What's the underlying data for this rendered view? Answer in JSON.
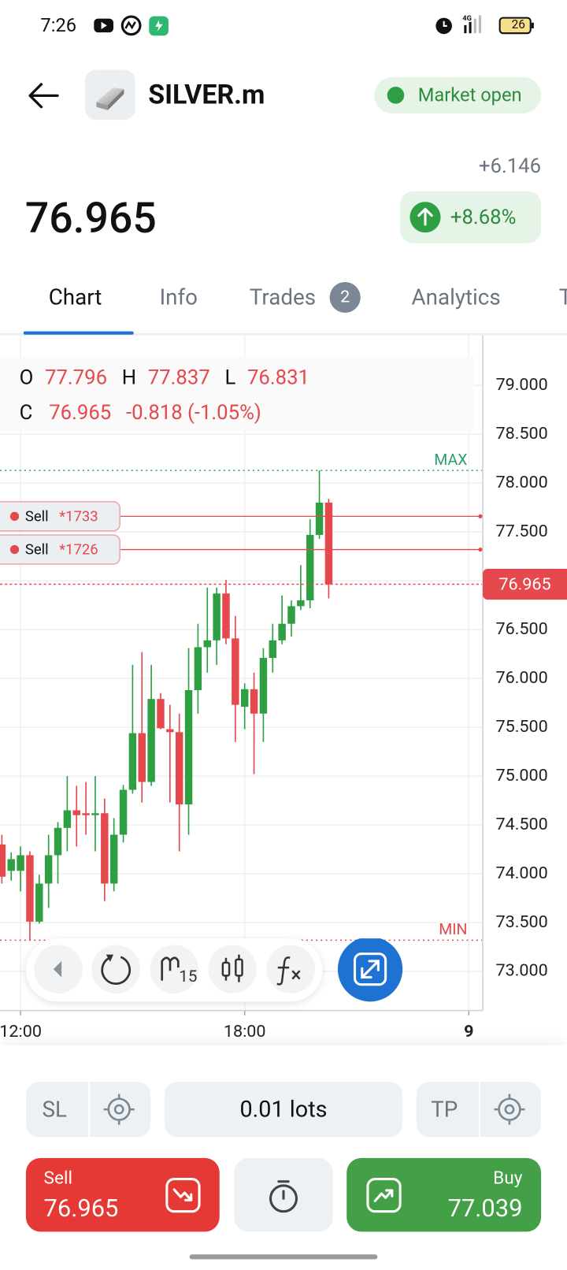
{
  "status_bar": {
    "time": "7:26",
    "battery": "26"
  },
  "header": {
    "symbol": "SILVER.m",
    "market_status": "Market open"
  },
  "quote": {
    "change": "+6.146",
    "price": "76.965",
    "change_percent": "+8.68%"
  },
  "tabs": {
    "items": [
      "Chart",
      "Info",
      "Trades",
      "Analytics",
      "T"
    ],
    "trades_badge": "2"
  },
  "ohlc": {
    "o_label": "O",
    "o": "77.796",
    "h_label": "H",
    "h": "77.837",
    "l_label": "L",
    "l": "76.831",
    "c_label": "C",
    "c": "76.965",
    "change": "-0.818 (-1.05%)"
  },
  "chart_data": {
    "type": "candlestick",
    "ylim": [
      72.6,
      79.52
    ],
    "yticks": [
      {
        "value": 73,
        "label": "73.000"
      },
      {
        "value": 73.5,
        "label": "73.500"
      },
      {
        "value": 74,
        "label": "74.000"
      },
      {
        "value": 74.5,
        "label": "74.500"
      },
      {
        "value": 75,
        "label": "75.000"
      },
      {
        "value": 75.5,
        "label": "75.500"
      },
      {
        "value": 76,
        "label": "76.000"
      },
      {
        "value": 76.5,
        "label": "76.500"
      },
      {
        "value": 77,
        "label": "77.000"
      },
      {
        "value": 77.5,
        "label": "77.500"
      },
      {
        "value": 78,
        "label": "78.000"
      },
      {
        "value": 78.5,
        "label": "78.500"
      },
      {
        "value": 79,
        "label": "79.000"
      }
    ],
    "xlim": [
      -0.2,
      50.8
    ],
    "xticks": [
      {
        "value": 2,
        "label": "12:00"
      },
      {
        "value": 26,
        "label": "18:00"
      },
      {
        "value": 50,
        "label": "9"
      }
    ],
    "grid": true,
    "up_color": "#2ea043",
    "down_color": "#e5484d",
    "open": [
      74.3,
      74.03,
      74.03,
      74.19,
      73.51,
      73.9,
      74.19,
      74.47,
      74.65,
      74.62,
      74.6,
      74.62,
      73.9,
      74.4,
      74.86,
      75.44,
      74.94,
      75.79,
      75.48,
      75.45,
      74.71,
      75.88,
      76.32,
      76.39,
      76.87,
      76.41,
      75.71,
      75.89,
      75.64,
      76.21,
      76.39,
      76.56,
      76.74,
      76.8,
      77.47,
      77.8
    ],
    "high": [
      74.4,
      74.22,
      74.28,
      74.23,
      73.99,
      74.4,
      74.53,
      75.0,
      74.9,
      74.94,
      75.0,
      74.77,
      74.57,
      74.91,
      76.14,
      76.27,
      76.14,
      75.85,
      75.73,
      75.64,
      76.31,
      76.56,
      76.93,
      76.93,
      77.01,
      76.64,
      75.95,
      76.06,
      76.31,
      76.56,
      76.85,
      76.8,
      77.16,
      77.63,
      78.13,
      77.84
    ],
    "low": [
      73.9,
      73.93,
      73.82,
      73.32,
      73.49,
      73.65,
      73.9,
      74.23,
      74.28,
      74.4,
      74.23,
      73.72,
      73.82,
      74.32,
      74.82,
      74.73,
      74.9,
      75.48,
      74.73,
      74.23,
      74.4,
      75.64,
      76.06,
      76.14,
      76.35,
      75.35,
      75.48,
      75.02,
      75.35,
      76.06,
      76.35,
      76.43,
      76.7,
      76.72,
      77.43,
      76.82
    ],
    "close": [
      73.97,
      74.15,
      74.19,
      73.51,
      73.9,
      74.19,
      74.47,
      74.65,
      74.6,
      74.6,
      74.62,
      73.9,
      74.4,
      74.86,
      75.44,
      74.94,
      75.79,
      75.49,
      75.45,
      74.71,
      75.88,
      76.32,
      76.39,
      76.87,
      76.41,
      75.73,
      75.89,
      75.64,
      76.21,
      76.39,
      76.56,
      76.74,
      76.8,
      77.47,
      77.8,
      76.965
    ],
    "max_line": {
      "label": "MAX",
      "value": 78.13
    },
    "min_line": {
      "label": "MIN",
      "value": 73.32
    },
    "orders": [
      {
        "side": "Sell",
        "ticket": "*1733",
        "value": 77.66
      },
      {
        "side": "Sell",
        "ticket": "*1726",
        "value": 77.32
      }
    ],
    "current_price": 76.965
  },
  "toolbar": {
    "interval": "15"
  },
  "trade_panel": {
    "sl": "SL",
    "lots": "0.01 lots",
    "tp": "TP",
    "sell_label": "Sell",
    "sell_price": "76.965",
    "buy_label": "Buy",
    "buy_price": "77.039"
  }
}
